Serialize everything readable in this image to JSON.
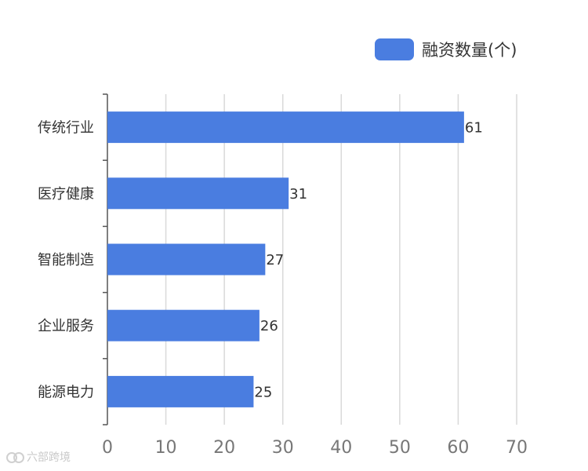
{
  "colors": {
    "bar": "#4a7de0",
    "grid": "#d9d9d9",
    "axis": "#555555",
    "text": "#333333",
    "tick": "#777777"
  },
  "watermark": {
    "text": "六部跨境"
  },
  "chart_data": {
    "type": "bar",
    "orientation": "horizontal",
    "categories": [
      "传统行业",
      "医疗健康",
      "智能制造",
      "企业服务",
      "能源电力"
    ],
    "series": [
      {
        "name": "融资数量(个)",
        "values": [
          61,
          31,
          27,
          26,
          25
        ]
      }
    ],
    "xlim": [
      0,
      70
    ],
    "xticks": [
      0,
      10,
      20,
      30,
      40,
      50,
      60,
      70
    ],
    "grid": true,
    "legend": "top-right",
    "data_labels": true
  }
}
